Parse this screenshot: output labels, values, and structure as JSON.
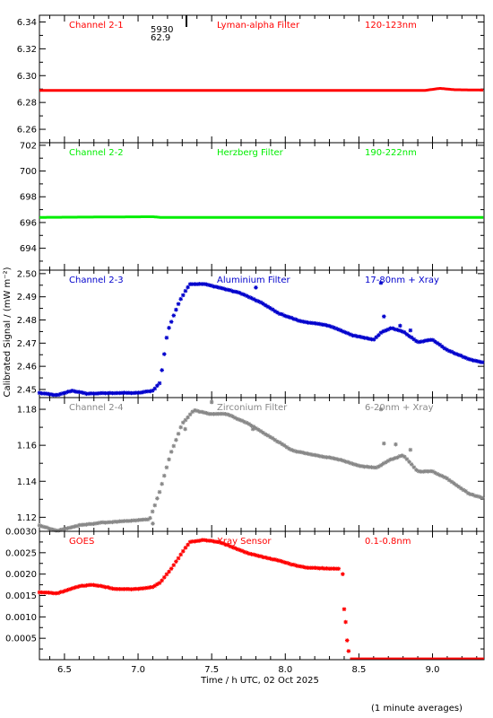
{
  "x_axis_label": "Time / h UTC, 02 Oct 2025",
  "y_axis_label": "Calibrated Signal / (mW m⁻²)",
  "footnote": "(1 minute averages)",
  "chart_data": [
    {
      "type": "scatter",
      "channel": "Channel 2-1",
      "filter": "Lyman-alpha Filter",
      "band": "120-123nm",
      "color": "#ff0000",
      "xlim": [
        6.33,
        9.35
      ],
      "ylim": [
        6.25,
        6.345
      ],
      "xticks": [
        6.5,
        7.0,
        7.5,
        8.0,
        8.5,
        9.0
      ],
      "yticks": [
        6.26,
        6.28,
        6.3,
        6.32,
        6.34
      ],
      "ytick_labels": [
        "6.26",
        "6.28",
        "6.30",
        "6.32",
        "6.34"
      ],
      "annotation_lines": [
        "5930",
        "62.9"
      ],
      "segments": [
        [
          6.33,
          6.289
        ],
        [
          8.95,
          6.289
        ],
        [
          9.05,
          6.2905
        ],
        [
          9.15,
          6.2895
        ],
        [
          9.35,
          6.2892
        ]
      ],
      "marker": "line"
    },
    {
      "type": "scatter",
      "channel": "Channel 2-2",
      "filter": "Herzberg Filter",
      "band": "190-222nm",
      "color": "#00ee00",
      "xlim": [
        6.33,
        9.35
      ],
      "ylim": [
        692.3,
        702.2
      ],
      "xticks": [
        6.5,
        7.0,
        7.5,
        8.0,
        8.5,
        9.0
      ],
      "yticks": [
        694,
        696,
        698,
        700,
        702
      ],
      "ytick_labels": [
        "694",
        "696",
        "698",
        "700",
        "702"
      ],
      "segments": [
        [
          6.33,
          696.4
        ],
        [
          7.1,
          696.45
        ],
        [
          7.15,
          696.4
        ],
        [
          9.35,
          696.4
        ]
      ],
      "marker": "line"
    },
    {
      "type": "scatter",
      "channel": "Channel 2-3",
      "filter": "Aluminium Filter",
      "band": "17-80nm + Xray",
      "color": "#0000cc",
      "xlim": [
        6.33,
        9.35
      ],
      "ylim": [
        2.4465,
        2.5015
      ],
      "xticks": [
        6.5,
        7.0,
        7.5,
        8.0,
        8.5,
        9.0
      ],
      "yticks": [
        2.45,
        2.46,
        2.47,
        2.48,
        2.49,
        2.5
      ],
      "ytick_labels": [
        "2.45",
        "2.46",
        "2.47",
        "2.48",
        "2.49",
        "2.50"
      ],
      "segments": [
        [
          6.33,
          2.4485
        ],
        [
          6.45,
          2.4475
        ],
        [
          6.55,
          2.4495
        ],
        [
          6.65,
          2.4482
        ],
        [
          6.85,
          2.4485
        ],
        [
          7.0,
          2.4485
        ],
        [
          7.1,
          2.4495
        ],
        [
          7.15,
          2.453
        ],
        [
          7.2,
          2.475
        ],
        [
          7.28,
          2.488
        ],
        [
          7.35,
          2.4955
        ],
        [
          7.45,
          2.4955
        ],
        [
          7.55,
          2.494
        ],
        [
          7.7,
          2.4915
        ],
        [
          7.85,
          2.487
        ],
        [
          7.95,
          2.483
        ],
        [
          8.1,
          2.4795
        ],
        [
          8.3,
          2.4775
        ],
        [
          8.45,
          2.4735
        ],
        [
          8.6,
          2.4715
        ],
        [
          8.65,
          2.4745
        ],
        [
          8.72,
          2.4765
        ],
        [
          8.8,
          2.475
        ],
        [
          8.9,
          2.4705
        ],
        [
          9.0,
          2.4715
        ],
        [
          9.1,
          2.467
        ],
        [
          9.25,
          2.463
        ],
        [
          9.35,
          2.4615
        ]
      ],
      "outliers": [
        [
          7.8,
          2.494
        ],
        [
          8.65,
          2.496
        ],
        [
          8.67,
          2.4815
        ],
        [
          8.78,
          2.4775
        ],
        [
          8.85,
          2.4755
        ]
      ],
      "marker": "star"
    },
    {
      "type": "scatter",
      "channel": "Channel 2-4",
      "filter": "Zirconium Filter",
      "band": "6-20nm + Xray",
      "color": "#888888",
      "xlim": [
        6.33,
        9.35
      ],
      "ylim": [
        1.1122,
        1.1865
      ],
      "xticks": [
        6.5,
        7.0,
        7.5,
        8.0,
        8.5,
        9.0
      ],
      "yticks": [
        1.12,
        1.14,
        1.16,
        1.18
      ],
      "ytick_labels": [
        "1.12",
        "1.14",
        "1.16",
        "1.18"
      ],
      "segments": [
        [
          6.33,
          1.1155
        ],
        [
          6.45,
          1.1125
        ],
        [
          6.6,
          1.1155
        ],
        [
          6.75,
          1.117
        ],
        [
          6.95,
          1.118
        ],
        [
          7.08,
          1.119
        ],
        [
          7.15,
          1.135
        ],
        [
          7.22,
          1.155
        ],
        [
          7.3,
          1.172
        ],
        [
          7.38,
          1.1795
        ],
        [
          7.48,
          1.1775
        ],
        [
          7.6,
          1.1775
        ],
        [
          7.75,
          1.172
        ],
        [
          7.9,
          1.1645
        ],
        [
          8.05,
          1.157
        ],
        [
          8.2,
          1.1545
        ],
        [
          8.35,
          1.1525
        ],
        [
          8.5,
          1.1485
        ],
        [
          8.62,
          1.1475
        ],
        [
          8.7,
          1.1515
        ],
        [
          8.8,
          1.1545
        ],
        [
          8.9,
          1.1455
        ],
        [
          9.0,
          1.1455
        ],
        [
          9.1,
          1.1415
        ],
        [
          9.25,
          1.133
        ],
        [
          9.35,
          1.1305
        ]
      ],
      "outliers": [
        [
          7.1,
          1.1165
        ],
        [
          7.32,
          1.169
        ],
        [
          7.5,
          1.184
        ],
        [
          7.78,
          1.169
        ],
        [
          8.65,
          1.18
        ],
        [
          8.67,
          1.161
        ],
        [
          8.75,
          1.1605
        ],
        [
          8.85,
          1.1575
        ]
      ],
      "marker": "star"
    },
    {
      "type": "scatter",
      "channel": "GOES",
      "filter": "Xray Sensor",
      "band": "0.1-0.8nm",
      "color": "#ff0000",
      "xlim": [
        6.33,
        9.35
      ],
      "ylim": [
        0.0,
        0.003
      ],
      "xticks": [
        6.5,
        7.0,
        7.5,
        8.0,
        8.5,
        9.0
      ],
      "yticks": [
        0.0005,
        0.001,
        0.0015,
        0.002,
        0.0025,
        0.003
      ],
      "ytick_labels": [
        "0.0005",
        "0.0010",
        "0.0015",
        "0.0020",
        "0.0025",
        "0.0030"
      ],
      "segments": [
        [
          6.33,
          0.00158
        ],
        [
          6.45,
          0.00155
        ],
        [
          6.6,
          0.00172
        ],
        [
          6.7,
          0.00175
        ],
        [
          6.85,
          0.00165
        ],
        [
          7.0,
          0.00165
        ],
        [
          7.1,
          0.0017
        ],
        [
          7.15,
          0.0018
        ],
        [
          7.22,
          0.0021
        ],
        [
          7.3,
          0.0025
        ],
        [
          7.35,
          0.00275
        ],
        [
          7.45,
          0.0028
        ],
        [
          7.55,
          0.00275
        ],
        [
          7.65,
          0.00262
        ],
        [
          7.75,
          0.00248
        ],
        [
          7.85,
          0.0024
        ],
        [
          7.95,
          0.00232
        ],
        [
          8.05,
          0.00222
        ],
        [
          8.15,
          0.00215
        ],
        [
          8.3,
          0.00213
        ],
        [
          8.37,
          0.00213
        ]
      ],
      "outliers": [
        [
          8.39,
          0.002
        ],
        [
          8.4,
          0.00118
        ],
        [
          8.41,
          0.00088
        ],
        [
          8.42,
          0.00045
        ],
        [
          8.43,
          0.0002
        ]
      ],
      "tail": [
        [
          8.44,
          3e-05
        ],
        [
          9.35,
          3e-05
        ]
      ],
      "marker": "star"
    }
  ]
}
